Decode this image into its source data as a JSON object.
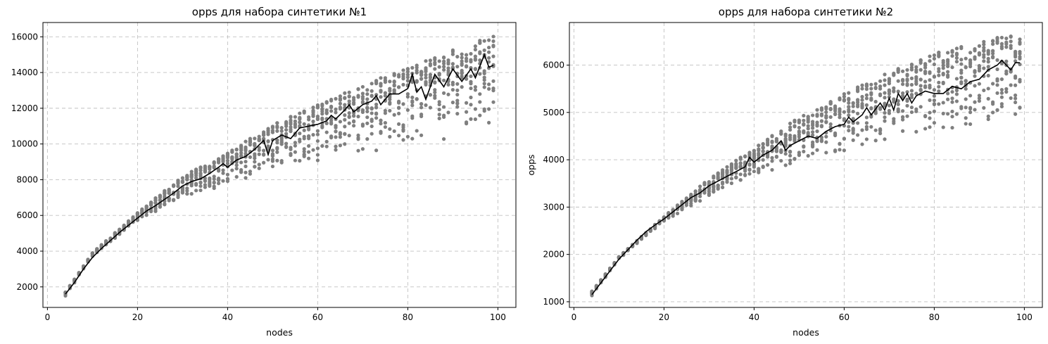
{
  "colors": {
    "scatter": "#7f7f7f",
    "mean_line": "#000000",
    "grid": "#c0c0c0",
    "axis": "#000000"
  },
  "chart_data": [
    {
      "type": "scatter",
      "title": "opps для набора синтетики №1",
      "xlabel": "nodes",
      "ylabel": "",
      "xlim": [
        -1,
        104
      ],
      "ylim": [
        850,
        16800
      ],
      "xticks": [
        0,
        20,
        40,
        60,
        80,
        100
      ],
      "yticks": [
        2000,
        4000,
        6000,
        8000,
        10000,
        12000,
        14000,
        16000
      ],
      "grid": true,
      "generator": {
        "x_start": 4,
        "x_end": 99,
        "points_per_x": 12
      },
      "series": [
        {
          "kind": "scatter",
          "color": "#7f7f7f",
          "upper_envelope": [
            [
              4,
              1700
            ],
            [
              10,
              3900
            ],
            [
              20,
              6150
            ],
            [
              30,
              8200
            ],
            [
              40,
              9500
            ],
            [
              50,
              11100
            ],
            [
              60,
              12200
            ],
            [
              70,
              13300
            ],
            [
              80,
              14300
            ],
            [
              90,
              15300
            ],
            [
              99,
              16100
            ]
          ],
          "lower_envelope": [
            [
              4,
              1500
            ],
            [
              10,
              3700
            ],
            [
              20,
              5700
            ],
            [
              30,
              6900
            ],
            [
              40,
              7700
            ],
            [
              50,
              8500
            ],
            [
              60,
              8900
            ],
            [
              70,
              9400
            ],
            [
              80,
              9800
            ],
            [
              90,
              10300
            ],
            [
              99,
              10700
            ]
          ]
        },
        {
          "kind": "line",
          "color": "#000000",
          "points": [
            [
              4,
              1600
            ],
            [
              6,
              2250
            ],
            [
              8,
              3000
            ],
            [
              10,
              3650
            ],
            [
              12,
              4150
            ],
            [
              14,
              4600
            ],
            [
              16,
              5050
            ],
            [
              18,
              5450
            ],
            [
              20,
              5850
            ],
            [
              22,
              6250
            ],
            [
              24,
              6550
            ],
            [
              26,
              6900
            ],
            [
              28,
              7250
            ],
            [
              30,
              7650
            ],
            [
              32,
              7900
            ],
            [
              34,
              8050
            ],
            [
              36,
              8350
            ],
            [
              38,
              8700
            ],
            [
              39,
              8900
            ],
            [
              40,
              8700
            ],
            [
              42,
              9100
            ],
            [
              44,
              9300
            ],
            [
              46,
              9700
            ],
            [
              48,
              10200
            ],
            [
              49,
              9400
            ],
            [
              50,
              10200
            ],
            [
              52,
              10500
            ],
            [
              54,
              10300
            ],
            [
              56,
              10900
            ],
            [
              58,
              11000
            ],
            [
              60,
              11100
            ],
            [
              62,
              11300
            ],
            [
              63,
              11600
            ],
            [
              64,
              11400
            ],
            [
              66,
              11900
            ],
            [
              67,
              12200
            ],
            [
              68,
              11800
            ],
            [
              70,
              12200
            ],
            [
              72,
              12400
            ],
            [
              73,
              12700
            ],
            [
              74,
              12200
            ],
            [
              76,
              12800
            ],
            [
              78,
              12800
            ],
            [
              80,
              13100
            ],
            [
              81,
              13900
            ],
            [
              82,
              12900
            ],
            [
              83,
              13200
            ],
            [
              84,
              12500
            ],
            [
              86,
              13900
            ],
            [
              88,
              13200
            ],
            [
              90,
              14200
            ],
            [
              92,
              13500
            ],
            [
              94,
              14200
            ],
            [
              95,
              13700
            ],
            [
              97,
              15000
            ],
            [
              98,
              14300
            ],
            [
              99,
              14400
            ]
          ]
        }
      ]
    },
    {
      "type": "scatter",
      "title": "opps для набора синтетики №2",
      "xlabel": "nodes",
      "ylabel": "opps",
      "xlim": [
        -1,
        104
      ],
      "ylim": [
        880,
        6900
      ],
      "xticks": [
        0,
        20,
        40,
        60,
        80,
        100
      ],
      "yticks": [
        1000,
        2000,
        3000,
        4000,
        5000,
        6000
      ],
      "grid": true,
      "generator": {
        "x_start": 4,
        "x_end": 99,
        "points_per_x": 12
      },
      "series": [
        {
          "kind": "scatter",
          "color": "#7f7f7f",
          "upper_envelope": [
            [
              4,
              1220
            ],
            [
              10,
              1950
            ],
            [
              20,
              2800
            ],
            [
              30,
              3600
            ],
            [
              40,
              4250
            ],
            [
              50,
              4900
            ],
            [
              60,
              5400
            ],
            [
              70,
              5850
            ],
            [
              80,
              6250
            ],
            [
              90,
              6500
            ],
            [
              99,
              6700
            ]
          ],
          "lower_envelope": [
            [
              4,
              1130
            ],
            [
              10,
              1900
            ],
            [
              20,
              2700
            ],
            [
              30,
              3200
            ],
            [
              40,
              3650
            ],
            [
              50,
              3950
            ],
            [
              60,
              4150
            ],
            [
              70,
              4300
            ],
            [
              80,
              4500
            ],
            [
              90,
              4700
            ],
            [
              99,
              4850
            ]
          ]
        },
        {
          "kind": "line",
          "color": "#000000",
          "points": [
            [
              4,
              1150
            ],
            [
              6,
              1400
            ],
            [
              8,
              1650
            ],
            [
              10,
              1900
            ],
            [
              12,
              2100
            ],
            [
              14,
              2300
            ],
            [
              16,
              2480
            ],
            [
              18,
              2620
            ],
            [
              20,
              2750
            ],
            [
              22,
              2900
            ],
            [
              24,
              3050
            ],
            [
              26,
              3200
            ],
            [
              28,
              3300
            ],
            [
              30,
              3450
            ],
            [
              32,
              3550
            ],
            [
              34,
              3650
            ],
            [
              36,
              3750
            ],
            [
              38,
              3850
            ],
            [
              39,
              4050
            ],
            [
              40,
              3950
            ],
            [
              42,
              4100
            ],
            [
              44,
              4200
            ],
            [
              46,
              4400
            ],
            [
              47,
              4200
            ],
            [
              48,
              4300
            ],
            [
              50,
              4400
            ],
            [
              52,
              4500
            ],
            [
              54,
              4450
            ],
            [
              56,
              4600
            ],
            [
              58,
              4700
            ],
            [
              60,
              4750
            ],
            [
              61,
              4900
            ],
            [
              62,
              4800
            ],
            [
              64,
              4950
            ],
            [
              65,
              5100
            ],
            [
              66,
              4950
            ],
            [
              68,
              5200
            ],
            [
              69,
              5050
            ],
            [
              70,
              5300
            ],
            [
              71,
              5050
            ],
            [
              72,
              5400
            ],
            [
              73,
              5250
            ],
            [
              74,
              5400
            ],
            [
              75,
              5200
            ],
            [
              76,
              5350
            ],
            [
              78,
              5450
            ],
            [
              80,
              5400
            ],
            [
              82,
              5400
            ],
            [
              84,
              5550
            ],
            [
              86,
              5500
            ],
            [
              88,
              5650
            ],
            [
              90,
              5700
            ],
            [
              92,
              5900
            ],
            [
              94,
              6000
            ],
            [
              95,
              6100
            ],
            [
              96,
              6000
            ],
            [
              97,
              5900
            ],
            [
              98,
              6050
            ],
            [
              99,
              6050
            ]
          ]
        }
      ]
    }
  ]
}
